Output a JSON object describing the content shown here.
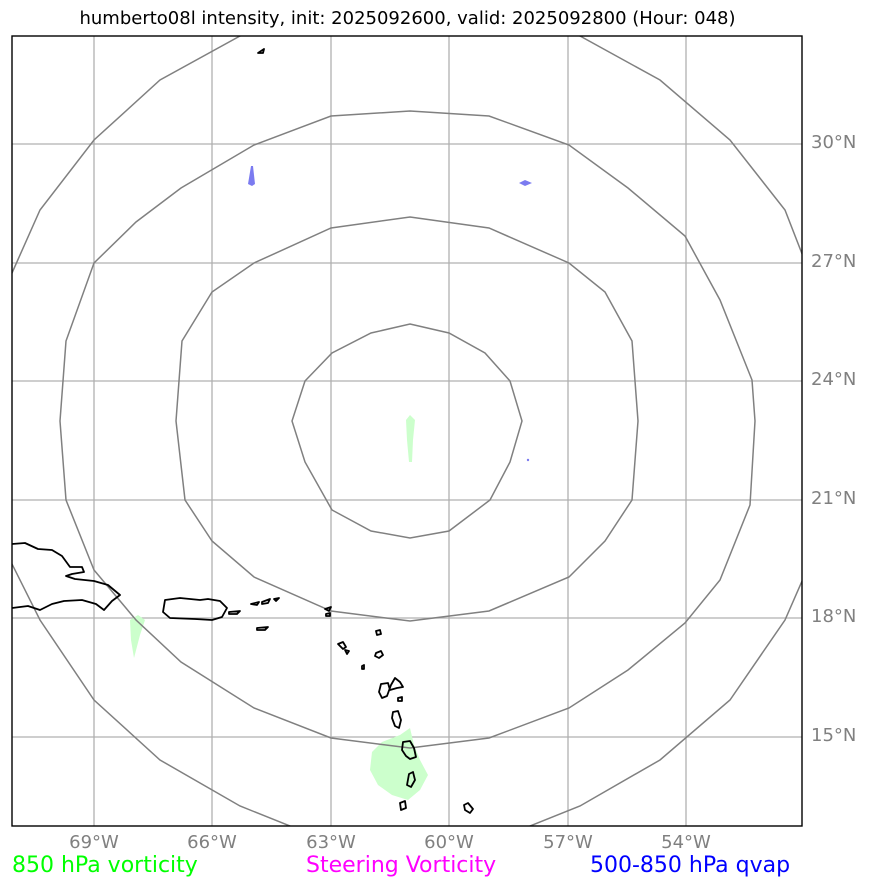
{
  "title": "humberto08l intensity, init: 2025092600, valid: 2025092800 (Hour: 048)",
  "lat_labels": [
    "30°N",
    "27°N",
    "24°N",
    "21°N",
    "18°N",
    "15°N"
  ],
  "lon_labels": [
    "69°W",
    "66°W",
    "63°W",
    "60°W",
    "57°W",
    "54°W"
  ],
  "legend": {
    "vorticity_850": {
      "label": "850 hPa vorticity",
      "color": "#00ff00"
    },
    "steering": {
      "label": "Steering Vorticity",
      "color": "#ff00ff"
    },
    "qvap": {
      "label": "500-850 hPa qvap",
      "color": "#0000ff"
    }
  },
  "colors": {
    "range_rings": "#808080",
    "gridlines": "#b0b0b0",
    "coastline": "#000000",
    "vorticity_fill": "#ccffcc",
    "qvap_fill": "#7b7bf0"
  }
}
